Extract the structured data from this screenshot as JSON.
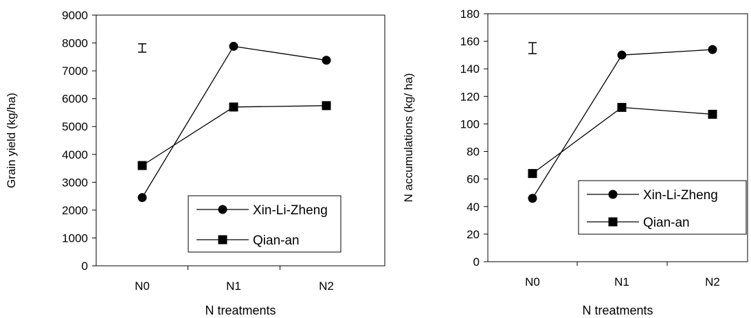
{
  "chart_data": [
    {
      "type": "line",
      "categories": [
        "N0",
        "N1",
        "N2"
      ],
      "series": [
        {
          "name": "Xin-Li-Zheng",
          "marker": "circle",
          "values": [
            2450,
            7880,
            7380
          ]
        },
        {
          "name": "Qian-an",
          "marker": "square",
          "values": [
            3600,
            5700,
            5750
          ]
        }
      ],
      "xlabel": "N treatments",
      "ylabel": "Grain yield (kg/ha)",
      "ylim": [
        0,
        9000
      ],
      "yticks": [
        0,
        1000,
        2000,
        3000,
        4000,
        5000,
        6000,
        7000,
        8000,
        9000
      ],
      "error_bar": {
        "category": "N0",
        "center": 7820,
        "half_range": 150
      },
      "grid": false,
      "legend": "bottom-right"
    },
    {
      "type": "line",
      "categories": [
        "N0",
        "N1",
        "N2"
      ],
      "series": [
        {
          "name": "Xin-Li-Zheng",
          "marker": "circle",
          "values": [
            46,
            150,
            154
          ]
        },
        {
          "name": "Qian-an",
          "marker": "square",
          "values": [
            64,
            112,
            107
          ]
        }
      ],
      "xlabel": "N treatments",
      "ylabel": "N accumulations  (kg/ ha)",
      "ylim": [
        0,
        180
      ],
      "yticks": [
        0,
        20,
        40,
        60,
        80,
        100,
        120,
        140,
        160,
        180
      ],
      "error_bar": {
        "category": "N0",
        "center": 155,
        "half_range": 4
      },
      "grid": false,
      "legend": "bottom-right"
    }
  ]
}
